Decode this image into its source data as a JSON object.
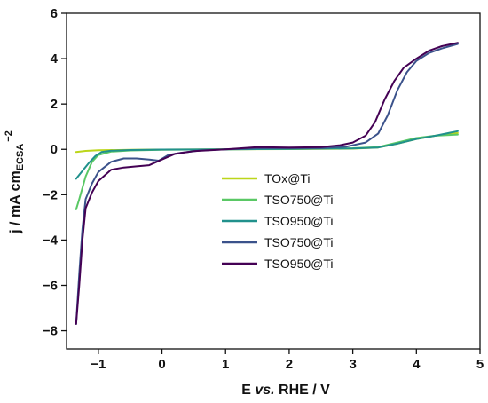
{
  "chart_data": {
    "type": "line",
    "xlabel": {
      "main": "E ",
      "italic": "vs.",
      "rest": " RHE / V"
    },
    "ylabel": {
      "main": "j / mA cm",
      "sub": "ECSA",
      "sup": "−2"
    },
    "xlim": [
      -1.5,
      5
    ],
    "ylim": [
      -8.8,
      6
    ],
    "xticks": [
      -1,
      0,
      1,
      2,
      3,
      4,
      5
    ],
    "xtick_labels": [
      "−1",
      "0",
      "1",
      "2",
      "3",
      "4",
      "5"
    ],
    "yticks": [
      -8,
      -6,
      -4,
      -2,
      0,
      2,
      4,
      6
    ],
    "ytick_labels": [
      "−8",
      "−6",
      "−4",
      "−2",
      "0",
      "2",
      "4",
      "6"
    ],
    "grid": false,
    "legend_position": "center-right",
    "series": [
      {
        "name": "TOx@Ti",
        "color": "#bcd61a",
        "x": [
          -1.35,
          -1.2,
          -1.0,
          -0.5,
          0.0,
          1.0,
          2.0,
          3.0,
          3.4,
          3.7,
          4.0,
          4.3,
          4.65
        ],
        "y": [
          -0.12,
          -0.07,
          -0.04,
          -0.02,
          -0.01,
          0.0,
          0.01,
          0.03,
          0.08,
          0.25,
          0.45,
          0.6,
          0.72
        ]
      },
      {
        "name": "TSO750@Ti",
        "color": "#5ac865",
        "x": [
          -1.35,
          -1.3,
          -1.25,
          -1.2,
          -1.1,
          -1.0,
          -0.8,
          -0.5,
          0.0,
          1.0,
          2.0,
          3.0,
          3.4,
          3.7,
          4.0,
          4.3,
          4.65
        ],
        "y": [
          -2.65,
          -2.2,
          -1.7,
          -1.2,
          -0.55,
          -0.25,
          -0.1,
          -0.05,
          -0.02,
          0.0,
          0.02,
          0.05,
          0.1,
          0.3,
          0.5,
          0.6,
          0.65
        ]
      },
      {
        "name": "TSO950@Ti",
        "color": "#21918c",
        "x": [
          -1.35,
          -1.25,
          -1.15,
          -1.05,
          -0.95,
          -0.8,
          -0.5,
          0.0,
          1.0,
          2.0,
          3.0,
          3.4,
          3.7,
          4.0,
          4.3,
          4.65
        ],
        "y": [
          -1.3,
          -0.95,
          -0.6,
          -0.3,
          -0.12,
          -0.06,
          -0.03,
          -0.01,
          0.0,
          0.02,
          0.04,
          0.08,
          0.25,
          0.45,
          0.6,
          0.8
        ]
      },
      {
        "name": "TSO750@Ti",
        "color": "#3b528b",
        "x": [
          -1.35,
          -1.3,
          -1.25,
          -1.2,
          -1.1,
          -1.0,
          -0.8,
          -0.6,
          -0.4,
          -0.2,
          -0.05,
          0.1,
          0.3,
          0.6,
          1.0,
          1.5,
          2.0,
          2.5,
          2.9,
          3.2,
          3.4,
          3.55,
          3.7,
          3.85,
          4.0,
          4.2,
          4.4,
          4.65
        ],
        "y": [
          -7.7,
          -5.5,
          -3.5,
          -2.2,
          -1.5,
          -1.0,
          -0.55,
          -0.4,
          -0.4,
          -0.45,
          -0.5,
          -0.25,
          -0.15,
          -0.05,
          0.0,
          0.05,
          0.05,
          0.06,
          0.12,
          0.3,
          0.7,
          1.5,
          2.6,
          3.4,
          3.9,
          4.25,
          4.45,
          4.65
        ]
      },
      {
        "name": "TSO950@Ti",
        "color": "#440154",
        "x": [
          -1.35,
          -1.3,
          -1.25,
          -1.2,
          -1.1,
          -1.0,
          -0.8,
          -0.6,
          -0.4,
          -0.2,
          0.0,
          0.2,
          0.5,
          1.0,
          1.5,
          2.0,
          2.5,
          2.8,
          3.0,
          3.2,
          3.35,
          3.5,
          3.65,
          3.8,
          4.0,
          4.2,
          4.4,
          4.65
        ],
        "y": [
          -7.7,
          -6.0,
          -4.0,
          -2.6,
          -1.9,
          -1.4,
          -0.9,
          -0.8,
          -0.75,
          -0.7,
          -0.45,
          -0.2,
          -0.08,
          0.0,
          0.1,
          0.08,
          0.1,
          0.18,
          0.3,
          0.6,
          1.2,
          2.2,
          3.0,
          3.6,
          4.0,
          4.35,
          4.55,
          4.7
        ]
      }
    ]
  }
}
